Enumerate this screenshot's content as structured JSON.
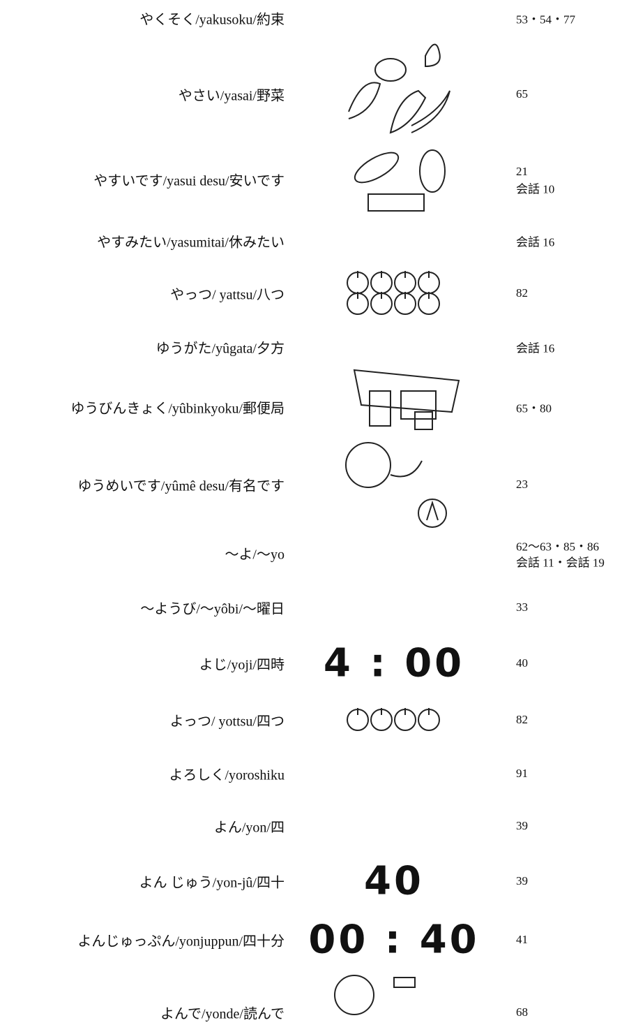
{
  "rows": [
    {
      "term": "やくそく/yakusoku/約束",
      "pages": [
        "53・54・77"
      ]
    },
    {
      "term": "やさい/yasai/野菜",
      "pages": [
        "65"
      ]
    },
    {
      "term": "やすいです/yasui desu/安いです",
      "pages": [
        "21",
        "会話 10"
      ]
    },
    {
      "term": "やすみたい/yasumitai/休みたい",
      "pages": [
        "会話 16"
      ]
    },
    {
      "term": "やっつ/ yattsu/八つ",
      "pages": [
        "82"
      ]
    },
    {
      "term": "ゆうがた/yûgata/夕方",
      "pages": [
        "会話 16"
      ]
    },
    {
      "term": "ゆうびんきょく/yûbinkyoku/郵便局",
      "pages": [
        "65・80"
      ]
    },
    {
      "term": "ゆうめいです/yûmê desu/有名です",
      "pages": [
        "23"
      ]
    },
    {
      "term": "～よ/～yo",
      "pages": [
        "62～63・85・86",
        "会話 11・会話 19"
      ]
    },
    {
      "term": "～ようび/～yôbi/～曜日",
      "pages": [
        "33"
      ]
    },
    {
      "term": "よじ/yoji/四時",
      "pages": [
        "40"
      ],
      "image_text": "4 : 00"
    },
    {
      "term": "よっつ/ yottsu/四つ",
      "pages": [
        "82"
      ]
    },
    {
      "term": "よろしく/yoroshiku",
      "pages": [
        "91"
      ]
    },
    {
      "term": "よん/yon/四",
      "pages": [
        "39"
      ]
    },
    {
      "term": "よん じゅう/yon-jû/四十",
      "pages": [
        "39"
      ],
      "image_text": "40"
    },
    {
      "term": "よんじゅっぷん/yonjuppun/四十分",
      "pages": [
        "41"
      ],
      "image_text": "00 : 40"
    },
    {
      "term": "よんで/yonde/読んで",
      "pages": [
        "68"
      ]
    }
  ]
}
